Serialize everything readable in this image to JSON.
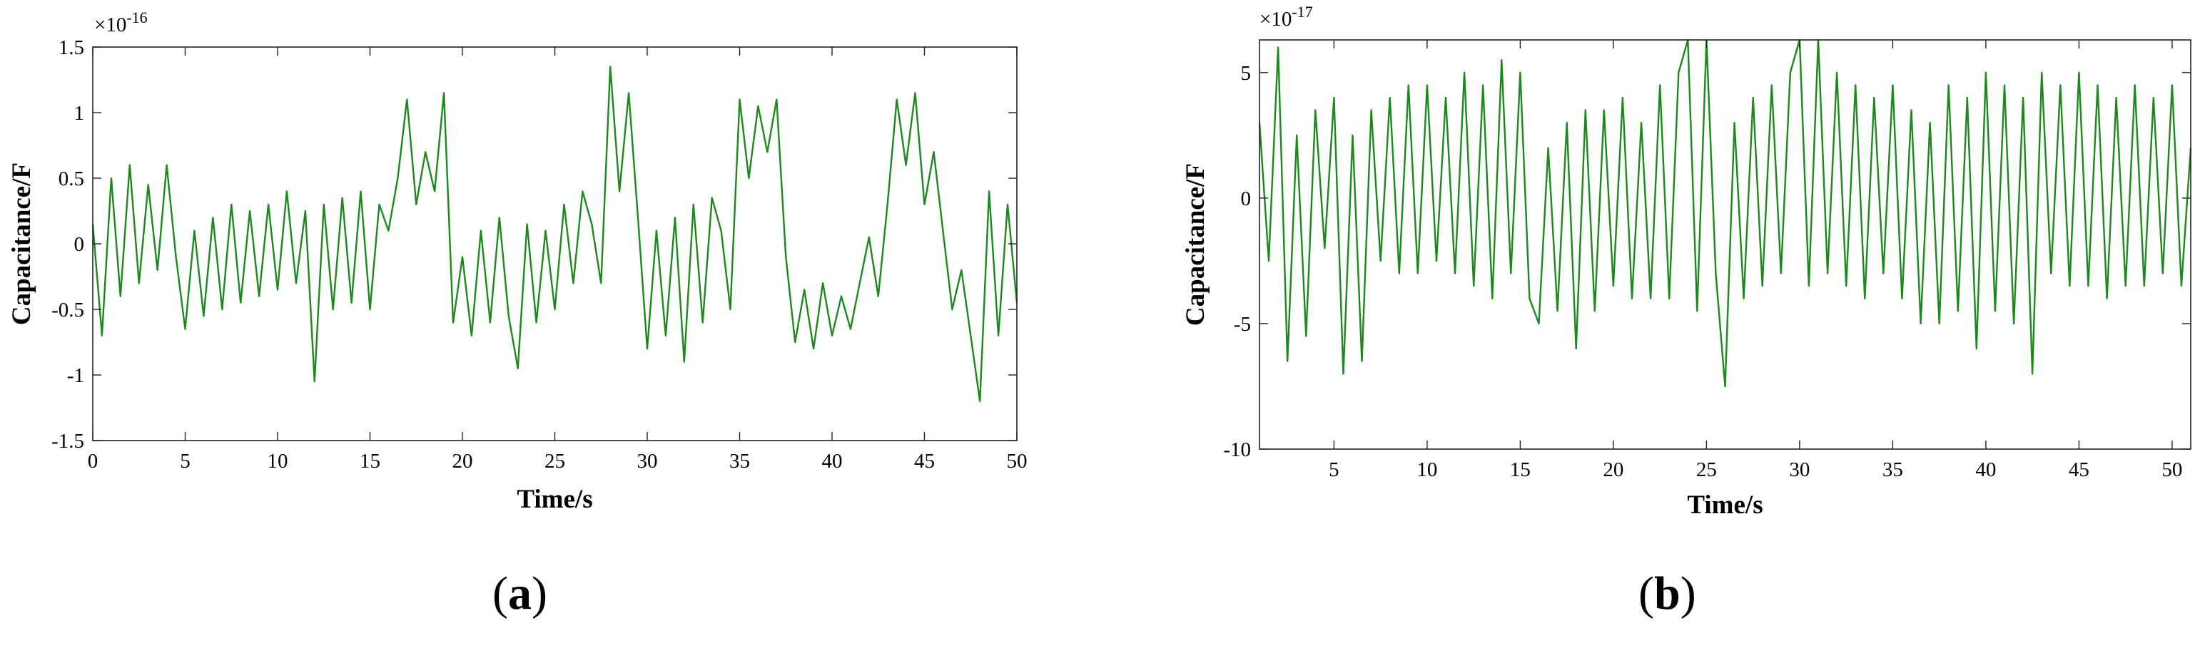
{
  "chart_data": [
    {
      "type": "line",
      "panel_label": "a",
      "title": "",
      "xlabel": "Time/s",
      "ylabel": "Capacitance/F",
      "y_exponent_base": "×10",
      "y_exponent_power": "-16",
      "xlim": [
        0,
        50
      ],
      "ylim": [
        -1.5,
        1.5
      ],
      "xticks": [
        0,
        5,
        10,
        15,
        20,
        25,
        30,
        35,
        40,
        45,
        50
      ],
      "xtick_labels": [
        "0",
        "5",
        "10",
        "15",
        "20",
        "25",
        "30",
        "35",
        "40",
        "45",
        "50"
      ],
      "yticks": [
        -1.5,
        -1,
        -0.5,
        0,
        0.5,
        1,
        1.5
      ],
      "ytick_labels": [
        "-1.5",
        "-1",
        "-0.5",
        "0",
        "0.5",
        "1",
        "1.5"
      ],
      "grid": false,
      "line_color": "#1a8a1a",
      "series": [
        {
          "x": [
            0,
            0.5,
            1,
            1.5,
            2,
            2.5,
            3,
            3.5,
            4,
            4.5,
            5,
            5.5,
            6,
            6.5,
            7,
            7.5,
            8,
            8.5,
            9,
            9.5,
            10,
            10.5,
            11,
            11.5,
            12,
            12.5,
            13,
            13.5,
            14,
            14.5,
            15,
            15.5,
            16,
            16.5,
            17,
            17.5,
            18,
            18.5,
            19,
            19.5,
            20,
            20.5,
            21,
            21.5,
            22,
            22.5,
            23,
            23.5,
            24,
            24.5,
            25,
            25.5,
            26,
            26.5,
            27,
            27.5,
            28,
            28.5,
            29,
            29.5,
            30,
            30.5,
            31,
            31.5,
            32,
            32.5,
            33,
            33.5,
            34,
            34.5,
            35,
            35.5,
            36,
            36.5,
            37,
            37.5,
            38,
            38.5,
            39,
            39.5,
            40,
            40.5,
            41,
            41.5,
            42,
            42.5,
            43,
            43.5,
            44,
            44.5,
            45,
            45.5,
            46,
            46.5,
            47,
            47.5,
            48,
            48.5,
            49,
            49.5,
            50
          ],
          "values": [
            0.15,
            -0.7,
            0.5,
            -0.4,
            0.6,
            -0.3,
            0.45,
            -0.2,
            0.6,
            -0.1,
            -0.65,
            0.1,
            -0.55,
            0.2,
            -0.5,
            0.3,
            -0.45,
            0.25,
            -0.4,
            0.3,
            -0.35,
            0.4,
            -0.3,
            0.25,
            -1.05,
            0.3,
            -0.5,
            0.35,
            -0.45,
            0.4,
            -0.5,
            0.3,
            0.1,
            0.5,
            1.1,
            0.3,
            0.7,
            0.4,
            1.15,
            -0.6,
            -0.1,
            -0.7,
            0.1,
            -0.6,
            0.2,
            -0.55,
            -0.95,
            0.15,
            -0.6,
            0.1,
            -0.5,
            0.3,
            -0.3,
            0.4,
            0.15,
            -0.3,
            1.35,
            0.4,
            1.15,
            0.2,
            -0.8,
            0.1,
            -0.7,
            0.2,
            -0.9,
            0.3,
            -0.6,
            0.35,
            0.1,
            -0.5,
            1.1,
            0.5,
            1.05,
            0.7,
            1.1,
            -0.1,
            -0.75,
            -0.35,
            -0.8,
            -0.3,
            -0.7,
            -0.4,
            -0.65,
            -0.3,
            0.05,
            -0.4,
            0.3,
            1.1,
            0.6,
            1.15,
            0.3,
            0.7,
            0.1,
            -0.5,
            -0.2,
            -0.7,
            -1.2,
            0.4,
            -0.7,
            0.3,
            -0.45
          ]
        }
      ]
    },
    {
      "type": "line",
      "panel_label": "b",
      "title": "",
      "xlabel": "Time/s",
      "ylabel": "Capacitance/F",
      "y_exponent_base": "×10",
      "y_exponent_power": "-17",
      "xlim": [
        1,
        51
      ],
      "ylim": [
        -10,
        6.3
      ],
      "xticks": [
        5,
        10,
        15,
        20,
        25,
        30,
        35,
        40,
        45,
        50
      ],
      "xtick_labels": [
        "5",
        "10",
        "15",
        "20",
        "25",
        "30",
        "35",
        "40",
        "45",
        "50"
      ],
      "yticks": [
        -10,
        -5,
        0,
        5
      ],
      "ytick_labels": [
        "-10",
        "-5",
        "0",
        "5"
      ],
      "grid": false,
      "line_color": "#1a8a1a",
      "series": [
        {
          "x": [
            1,
            1.5,
            2,
            2.5,
            3,
            3.5,
            4,
            4.5,
            5,
            5.5,
            6,
            6.5,
            7,
            7.5,
            8,
            8.5,
            9,
            9.5,
            10,
            10.5,
            11,
            11.5,
            12,
            12.5,
            13,
            13.5,
            14,
            14.5,
            15,
            15.5,
            16,
            16.5,
            17,
            17.5,
            18,
            18.5,
            19,
            19.5,
            20,
            20.5,
            21,
            21.5,
            22,
            22.5,
            23,
            23.5,
            24,
            24.5,
            25,
            25.5,
            26,
            26.5,
            27,
            27.5,
            28,
            28.5,
            29,
            29.5,
            30,
            30.5,
            31,
            31.5,
            32,
            32.5,
            33,
            33.5,
            34,
            34.5,
            35,
            35.5,
            36,
            36.5,
            37,
            37.5,
            38,
            38.5,
            39,
            39.5,
            40,
            40.5,
            41,
            41.5,
            42,
            42.5,
            43,
            43.5,
            44,
            44.5,
            45,
            45.5,
            46,
            46.5,
            47,
            47.5,
            48,
            48.5,
            49,
            49.5,
            50,
            50.5,
            51
          ],
          "values": [
            3,
            -2.5,
            6,
            -6.5,
            2.5,
            -5.5,
            3.5,
            -2,
            4,
            -7,
            2.5,
            -6.5,
            3.5,
            -2.5,
            4,
            -3,
            4.5,
            -3,
            4.5,
            -2.5,
            4,
            -3,
            5,
            -3.5,
            4.5,
            -4,
            5.5,
            -3,
            5,
            -4,
            -5,
            2,
            -4.5,
            3,
            -6,
            3.5,
            -4.5,
            3.5,
            -3.5,
            4,
            -4,
            3,
            -4,
            4.5,
            -4,
            5,
            6.3,
            -4.5,
            6.3,
            -3,
            -7.5,
            3,
            -4,
            4,
            -3.5,
            4.5,
            -3,
            5,
            6.3,
            -3.5,
            6.3,
            -3,
            5,
            -3.5,
            4.5,
            -4,
            4,
            -3,
            4.5,
            -4,
            3.5,
            -5,
            3,
            -5,
            4.5,
            -4.5,
            4,
            -6,
            5,
            -4.5,
            4.5,
            -5,
            4,
            -7,
            5,
            -3,
            4.5,
            -3.5,
            5,
            -3.5,
            4.5,
            -4,
            4,
            -3.5,
            4.5,
            -3.5,
            4,
            -3,
            4.5,
            -3.5,
            2
          ]
        }
      ]
    }
  ]
}
